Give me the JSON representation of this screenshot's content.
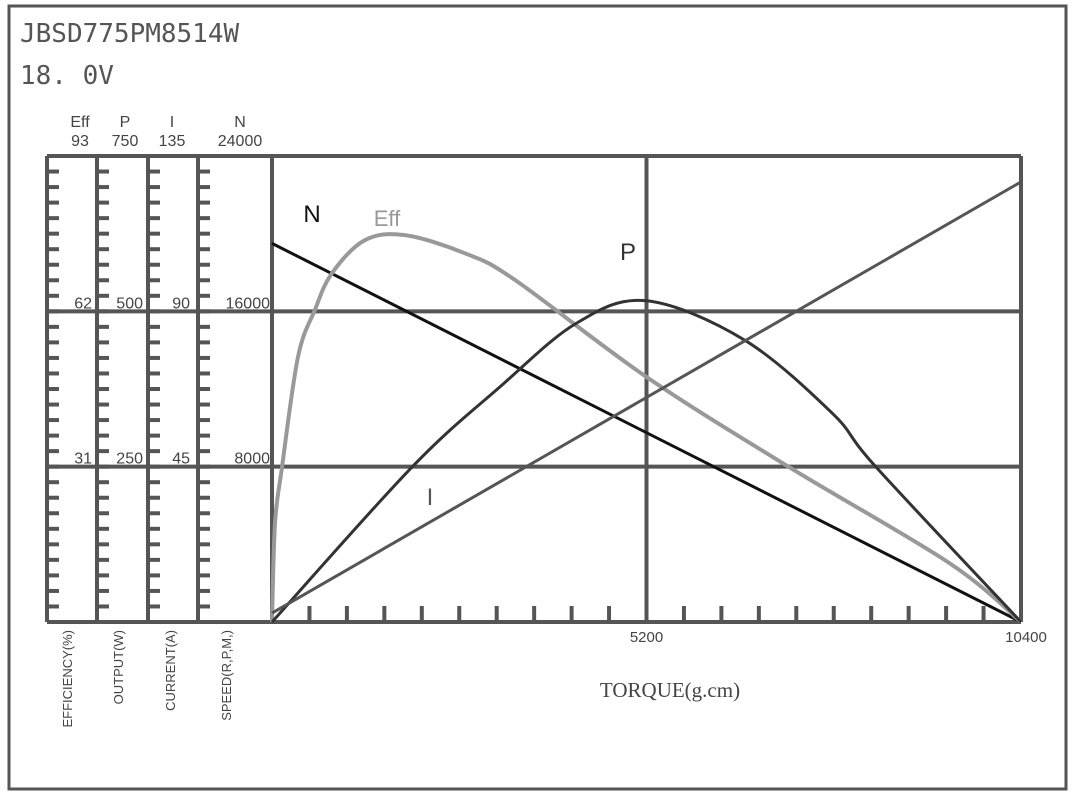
{
  "header": {
    "model": "JBSD775PM8514W",
    "voltage": "18. 0V"
  },
  "chart_data": {
    "type": "line",
    "xlabel": "TORQUE(g.cm)",
    "xlim": [
      0,
      10400
    ],
    "x_tick_labels": [
      "5200",
      "10400"
    ],
    "grid": true,
    "y_axes": [
      {
        "key": "eff",
        "symbol": "Eff",
        "label": "EFFICIENCY(%)",
        "max": 93,
        "tick_labels": [
          "93",
          "62",
          "31"
        ]
      },
      {
        "key": "p",
        "symbol": "P",
        "label": "OUTPUT(W)",
        "max": 750,
        "tick_labels": [
          "750",
          "500",
          "250"
        ]
      },
      {
        "key": "i",
        "symbol": "I",
        "label": "CURRENT(A)",
        "max": 135,
        "tick_labels": [
          "135",
          "90",
          "45"
        ]
      },
      {
        "key": "n",
        "symbol": "N",
        "label": "SPEED(R,P,M,)",
        "max": 24000,
        "tick_labels": [
          "24000",
          "16000",
          "8000"
        ]
      }
    ],
    "series": [
      {
        "name": "N",
        "axis": "n",
        "color": "#111111",
        "x": [
          0,
          10400
        ],
        "y": [
          19500,
          0
        ]
      },
      {
        "name": "Eff",
        "axis": "eff",
        "color": "#999999",
        "x": [
          0,
          42,
          139,
          361,
          596,
          832,
          1290,
          1844,
          2676,
          3370,
          5200,
          7182,
          9401,
          10400
        ],
        "y": [
          0,
          19.8,
          30.9,
          52.9,
          62.3,
          69.6,
          76.2,
          77.2,
          73.6,
          68.3,
          48.9,
          30.9,
          11.8,
          0
        ]
      },
      {
        "name": "P",
        "axis": "p",
        "color": "#333333",
        "x": [
          0,
          1941,
          3161,
          4229,
          5200,
          6558,
          7779,
          8390,
          10400
        ],
        "y": [
          0,
          249,
          378,
          481,
          517,
          454,
          336,
          249,
          0
        ]
      },
      {
        "name": "I",
        "axis": "i",
        "color": "#555555",
        "x": [
          0,
          10400
        ],
        "y": [
          2.6,
          127.5
        ]
      }
    ]
  }
}
